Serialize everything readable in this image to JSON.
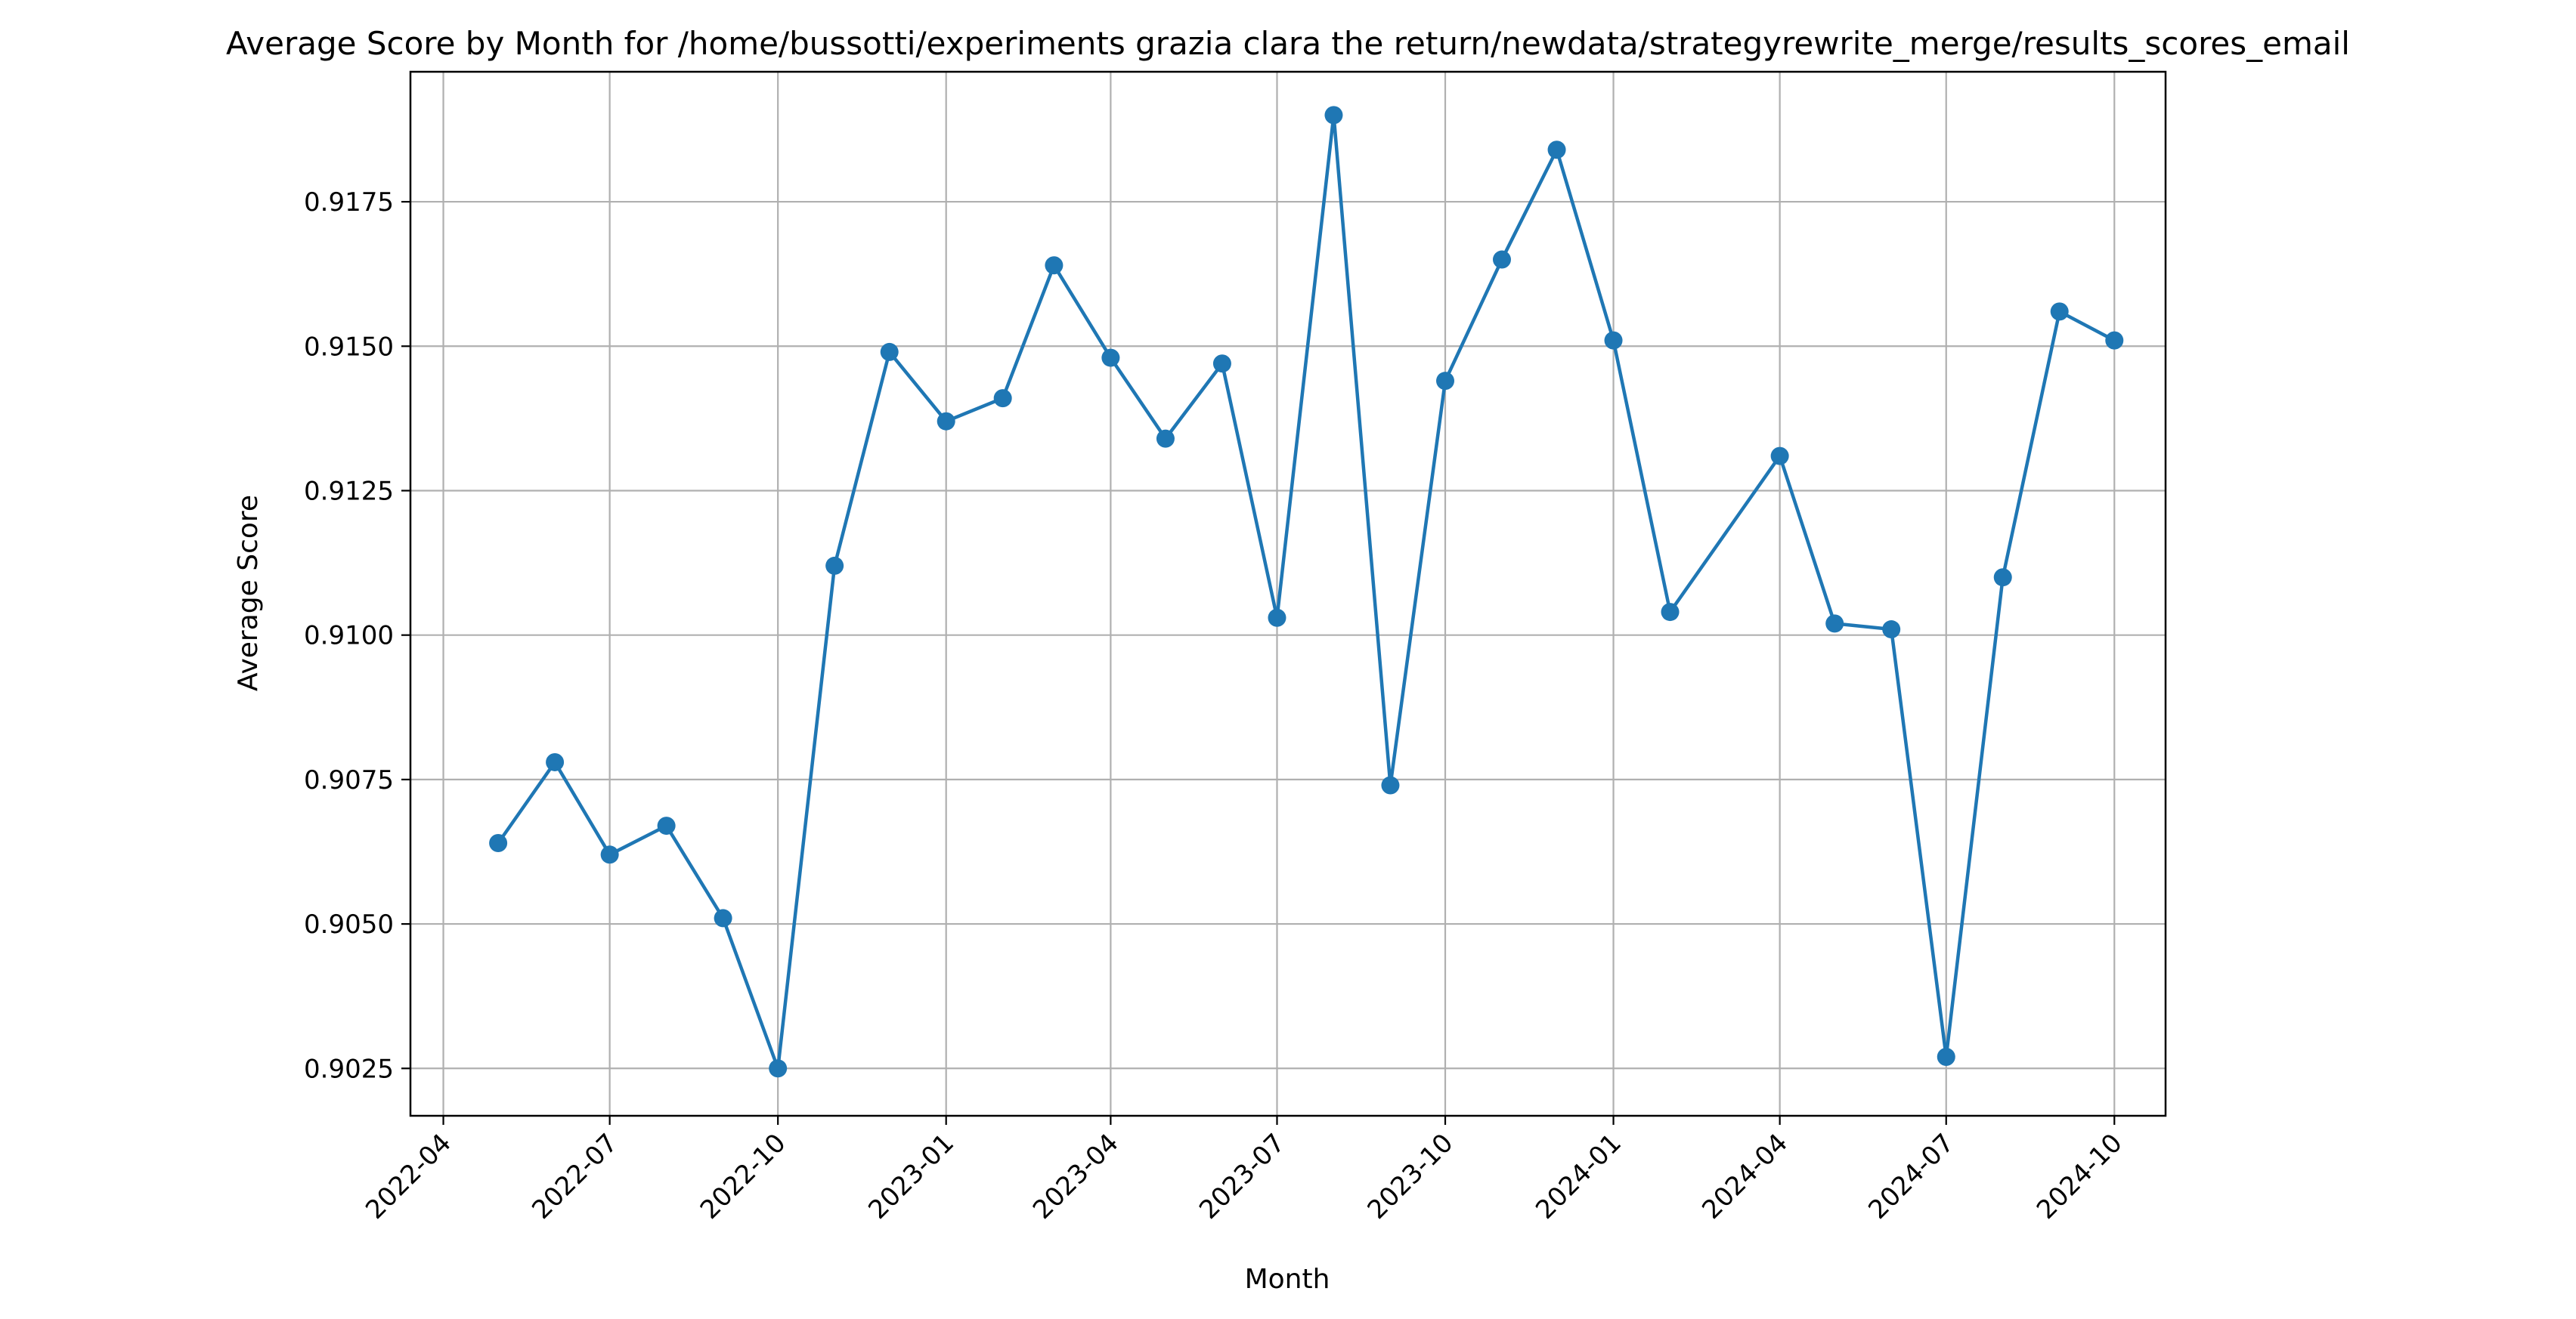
{
  "chart_data": {
    "type": "line",
    "title": "Average Score by Month for /home/bussotti/experiments grazia clara the return/newdata/strategyrewrite_merge/results_scores_email",
    "xlabel": "Month",
    "ylabel": "Average Score",
    "x_ticks": [
      "2022-04",
      "2022-07",
      "2022-10",
      "2023-01",
      "2023-04",
      "2023-07",
      "2023-10",
      "2024-01",
      "2024-04",
      "2024-07",
      "2024-10"
    ],
    "y_ticks": [
      "0.9025",
      "0.9050",
      "0.9075",
      "0.9100",
      "0.9125",
      "0.9150",
      "0.9175"
    ],
    "xlim": [
      "2022-03-14",
      "2024-10-29"
    ],
    "ylim": [
      0.90168,
      0.91975
    ],
    "grid": true,
    "marker": "circle",
    "color": "#1f77b4",
    "series": [
      {
        "x": [
          "2022-05",
          "2022-06",
          "2022-07",
          "2022-08",
          "2022-09",
          "2022-10",
          "2022-11",
          "2022-12",
          "2023-01",
          "2023-02",
          "2023-03",
          "2023-04",
          "2023-05",
          "2023-06",
          "2023-07",
          "2023-08",
          "2023-09",
          "2023-10",
          "2023-11",
          "2023-12",
          "2024-01",
          "2024-02",
          "2024-04",
          "2024-05",
          "2024-06",
          "2024-07",
          "2024-08",
          "2024-09",
          "2024-10"
        ],
        "values": [
          0.9064,
          0.9078,
          0.9062,
          0.9067,
          0.9051,
          0.9025,
          0.9112,
          0.9149,
          0.9137,
          0.9141,
          0.9164,
          0.9148,
          0.9134,
          0.9147,
          0.9103,
          0.919,
          0.9074,
          0.9144,
          0.9165,
          0.9184,
          0.9151,
          0.9104,
          0.9131,
          0.9102,
          0.9101,
          0.9027,
          0.911,
          0.9156,
          0.9151
        ]
      }
    ]
  }
}
